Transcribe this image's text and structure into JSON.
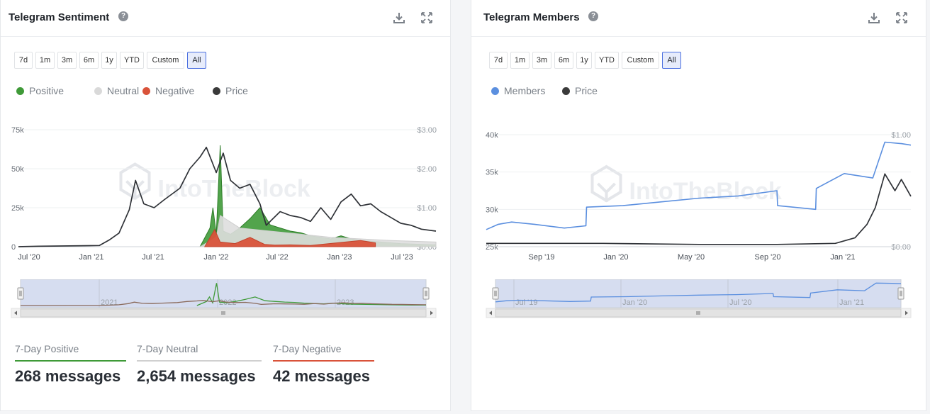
{
  "left": {
    "title": "Telegram Sentiment",
    "ranges": [
      "7d",
      "1m",
      "3m",
      "6m",
      "1y",
      "YTD",
      "Custom",
      "All"
    ],
    "active_range": "All",
    "legend": [
      {
        "label": "Positive",
        "color": "#3f9a38"
      },
      {
        "label": "Neutral",
        "color": "#d9d9d9"
      },
      {
        "label": "Negative",
        "color": "#d9533a"
      },
      {
        "label": "Price",
        "color": "#3a3a3a"
      }
    ],
    "watermark": "IntoTheBlock",
    "stats": [
      {
        "label": "7-Day Positive",
        "value": "268 messages",
        "color": "#3f9a38"
      },
      {
        "label": "7-Day Neutral",
        "value": "2,654 messages",
        "color": "#d0d0d0"
      },
      {
        "label": "7-Day Negative",
        "value": "42 messages",
        "color": "#d9533a"
      }
    ]
  },
  "right": {
    "title": "Telegram Members",
    "ranges": [
      "7d",
      "1m",
      "3m",
      "6m",
      "1y",
      "YTD",
      "Custom",
      "All"
    ],
    "active_range": "All",
    "legend": [
      {
        "label": "Members",
        "color": "#5b8fdf"
      },
      {
        "label": "Price",
        "color": "#3a3a3a"
      }
    ],
    "watermark": "IntoTheBlock"
  },
  "chart_data": [
    {
      "type": "area",
      "title": "Telegram Sentiment",
      "x_ticks": [
        "Jul '20",
        "Jan '21",
        "Jul '21",
        "Jan '22",
        "Jul '22",
        "Jan '23",
        "Jul '23"
      ],
      "y_left_ticks": [
        "0",
        "25k",
        "50k",
        "75k"
      ],
      "y_right_ticks": [
        "$0.00",
        "$1.00",
        "$2.00",
        "$3.00"
      ],
      "ylim_left": [
        0,
        75000
      ],
      "ylim_right": [
        0,
        3.0
      ],
      "navigator_labels": [
        "2021",
        "2022",
        "2023"
      ],
      "series": [
        {
          "name": "Positive",
          "axis": "left",
          "x": [
            "2021-11-01",
            "2021-12-01",
            "2021-12-10",
            "2021-12-20",
            "2022-01-01",
            "2022-01-10",
            "2022-02-01",
            "2022-03-01",
            "2022-04-01",
            "2022-05-01",
            "2022-06-01",
            "2022-07-01",
            "2022-08-01",
            "2022-09-01",
            "2022-10-01",
            "2022-11-01",
            "2022-12-01",
            "2023-01-01",
            "2023-02-01",
            "2023-03-01",
            "2023-05-01",
            "2023-07-01",
            "2023-09-01",
            "2023-10-15"
          ],
          "values": [
            0,
            12000,
            25000,
            8000,
            65000,
            10000,
            8000,
            12000,
            18000,
            25000,
            14000,
            12000,
            10000,
            9000,
            7000,
            6000,
            5000,
            7000,
            5000,
            4000,
            3000,
            2000,
            1500,
            1200
          ]
        },
        {
          "name": "Neutral",
          "axis": "left",
          "x": [
            "2021-11-01",
            "2021-12-20",
            "2022-01-01",
            "2022-03-01",
            "2022-06-01",
            "2022-09-01",
            "2022-12-01",
            "2023-03-01",
            "2023-06-01",
            "2023-10-15"
          ],
          "values": [
            0,
            6000,
            20000,
            12000,
            10000,
            8000,
            6000,
            5000,
            4000,
            3000
          ]
        },
        {
          "name": "Negative",
          "axis": "left",
          "x": [
            "2021-11-15",
            "2021-12-15",
            "2022-01-01",
            "2022-02-15",
            "2022-04-01",
            "2022-05-15",
            "2022-06-15",
            "2022-08-01",
            "2022-10-01",
            "2023-03-01",
            "2023-04-15"
          ],
          "values": [
            0,
            11000,
            3000,
            2000,
            6000,
            1500,
            1000,
            1200,
            800,
            4000,
            2500
          ]
        },
        {
          "name": "Price",
          "axis": "right",
          "x": [
            "2020-05-01",
            "2020-07-01",
            "2020-10-01",
            "2021-01-01",
            "2021-02-01",
            "2021-03-01",
            "2021-04-01",
            "2021-04-20",
            "2021-05-15",
            "2021-06-15",
            "2021-07-15",
            "2021-09-01",
            "2021-10-01",
            "2021-11-01",
            "2021-11-20",
            "2021-12-20",
            "2022-01-10",
            "2022-02-01",
            "2022-03-01",
            "2022-04-01",
            "2022-05-01",
            "2022-05-20",
            "2022-07-01",
            "2022-08-01",
            "2022-09-01",
            "2022-10-01",
            "2022-11-01",
            "2022-12-01",
            "2023-01-01",
            "2023-02-01",
            "2023-03-01",
            "2023-04-01",
            "2023-05-01",
            "2023-06-01",
            "2023-07-01",
            "2023-08-01",
            "2023-09-01",
            "2023-10-15"
          ],
          "values": [
            0.0,
            0.01,
            0.02,
            0.03,
            0.18,
            0.35,
            0.95,
            1.7,
            1.1,
            1.0,
            1.2,
            1.5,
            2.0,
            2.3,
            2.55,
            1.9,
            2.4,
            1.7,
            1.5,
            1.6,
            1.1,
            0.55,
            0.9,
            0.8,
            0.75,
            0.65,
            1.0,
            0.7,
            1.15,
            1.35,
            1.05,
            1.1,
            0.9,
            0.75,
            0.6,
            0.55,
            0.45,
            0.4
          ]
        }
      ]
    },
    {
      "type": "line",
      "title": "Telegram Members",
      "x_ticks": [
        "Sep '19",
        "Jan '20",
        "May '20",
        "Sep '20",
        "Jan '21"
      ],
      "y_left_ticks": [
        "25k",
        "30k",
        "35k",
        "40k"
      ],
      "y_right_ticks": [
        "$0.00",
        "$1.00"
      ],
      "ylim_left": [
        25000,
        40000
      ],
      "ylim_right": [
        0,
        1.0
      ],
      "navigator_labels": [
        "Jul '19",
        "Jan '20",
        "Jul '20",
        "Jan '21"
      ],
      "series": [
        {
          "name": "Members",
          "axis": "left",
          "x": [
            "2019-07-01",
            "2019-07-20",
            "2019-08-10",
            "2019-09-15",
            "2019-11-01",
            "2019-12-05",
            "2019-12-06",
            "2020-02-01",
            "2020-04-01",
            "2020-06-01",
            "2020-08-01",
            "2020-10-01",
            "2020-10-02",
            "2020-12-01",
            "2020-12-02",
            "2021-01-15",
            "2021-03-01",
            "2021-03-20",
            "2021-04-15",
            "2021-04-30"
          ],
          "values": [
            27300,
            28000,
            28300,
            28000,
            27500,
            27800,
            30300,
            30500,
            31000,
            31500,
            31800,
            32500,
            30500,
            30000,
            32800,
            34800,
            34200,
            39000,
            38800,
            38600
          ]
        },
        {
          "name": "Price",
          "axis": "right",
          "x": [
            "2019-07-01",
            "2019-10-01",
            "2020-01-01",
            "2020-06-01",
            "2020-10-01",
            "2021-01-01",
            "2021-02-01",
            "2021-02-20",
            "2021-03-05",
            "2021-03-20",
            "2021-04-05",
            "2021-04-15",
            "2021-04-30"
          ],
          "values": [
            0.03,
            0.03,
            0.03,
            0.02,
            0.02,
            0.03,
            0.08,
            0.2,
            0.35,
            0.65,
            0.5,
            0.6,
            0.45
          ]
        }
      ]
    }
  ]
}
